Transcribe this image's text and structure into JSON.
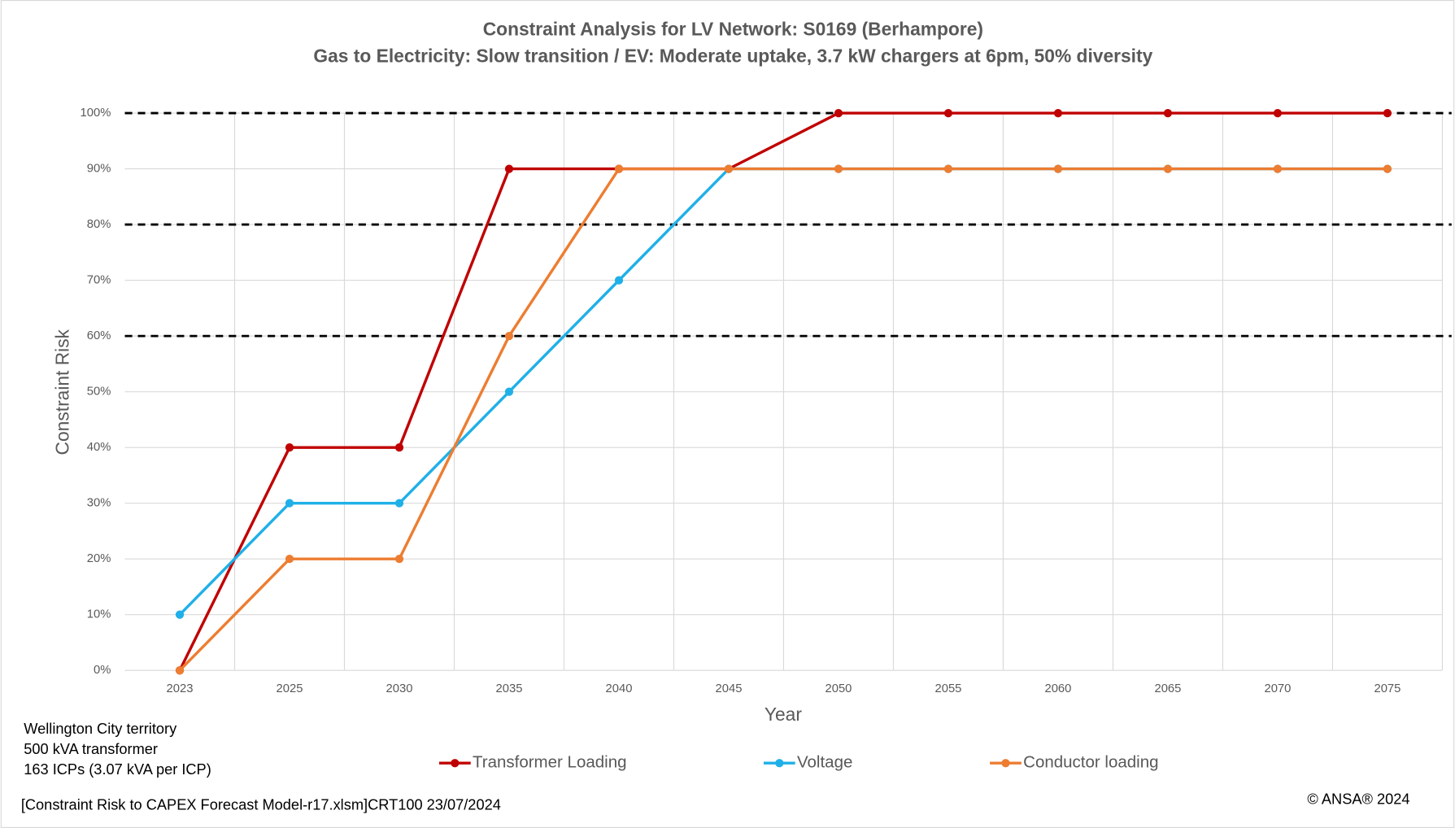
{
  "chart_data": {
    "type": "line",
    "title": "Constraint Analysis for LV Network: S0169 (Berhampore)",
    "subtitle": "Gas to Electricity: Slow transition / EV: Moderate uptake, 3.7 kW chargers at 6pm, 50% diversity",
    "x_label": "Year",
    "y_label": "Constraint Risk",
    "categories": [
      "2023",
      "2025",
      "2030",
      "2035",
      "2040",
      "2045",
      "2050",
      "2055",
      "2060",
      "2065",
      "2070",
      "2075"
    ],
    "series": [
      {
        "name": "Transformer Loading",
        "color": "#c00000",
        "values": [
          0,
          40,
          40,
          90,
          90,
          90,
          100,
          100,
          100,
          100,
          100,
          100
        ]
      },
      {
        "name": "Voltage",
        "color": "#1fb0e8",
        "values": [
          10,
          30,
          30,
          50,
          70,
          90,
          90,
          90,
          90,
          90,
          90,
          90
        ]
      },
      {
        "name": "Conductor loading",
        "color": "#ed7d31",
        "values": [
          0,
          20,
          20,
          60,
          90,
          90,
          90,
          90,
          90,
          90,
          90,
          90
        ]
      }
    ],
    "ylim": [
      0,
      100
    ],
    "yticks": [
      {
        "value": 0,
        "label": "0%"
      },
      {
        "value": 10,
        "label": "10%"
      },
      {
        "value": 20,
        "label": "20%"
      },
      {
        "value": 30,
        "label": "30%"
      },
      {
        "value": 40,
        "label": "40%"
      },
      {
        "value": 50,
        "label": "50%"
      },
      {
        "value": 60,
        "label": "60%"
      },
      {
        "value": 70,
        "label": "70%"
      },
      {
        "value": 80,
        "label": "80%"
      },
      {
        "value": 90,
        "label": "90%"
      },
      {
        "value": 100,
        "label": "100%"
      }
    ],
    "threshold_lines": [
      60,
      80,
      100
    ],
    "grid": true,
    "legend": "bottom",
    "notes": [
      "Wellington City territory",
      "500 kVA transformer",
      "163 ICPs (3.07 kVA per ICP)"
    ],
    "source": "[Constraint Risk to CAPEX Forecast Model-r17.xlsm]CRT100 23/07/2024",
    "copyright": "© ANSA® 2024"
  }
}
